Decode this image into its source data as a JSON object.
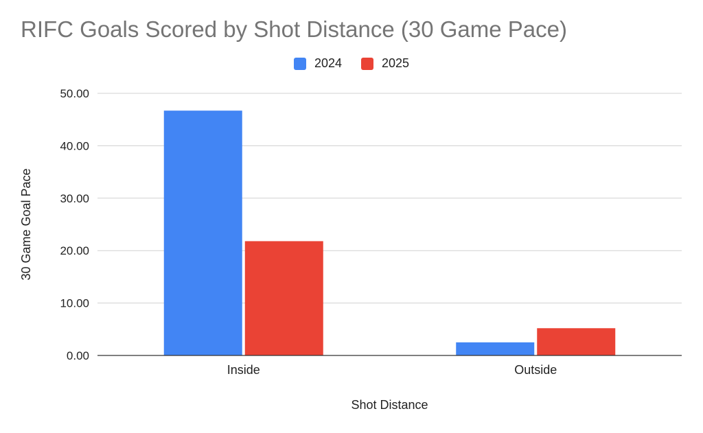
{
  "chart_data": {
    "type": "bar",
    "title": "RIFC Goals Scored by Shot Distance (30 Game Pace)",
    "xlabel": "Shot Distance",
    "ylabel": "30 Game Goal Pace",
    "categories": [
      "Inside",
      "Outside"
    ],
    "series": [
      {
        "name": "2024",
        "color": "#4285f4",
        "values": [
          46.7,
          2.5
        ]
      },
      {
        "name": "2025",
        "color": "#ea4335",
        "values": [
          21.8,
          5.2
        ]
      }
    ],
    "ylim": [
      0,
      50
    ],
    "yticks": [
      "0.00",
      "10.00",
      "20.00",
      "30.00",
      "40.00",
      "50.00"
    ],
    "grid": true,
    "legend_position": "top"
  }
}
